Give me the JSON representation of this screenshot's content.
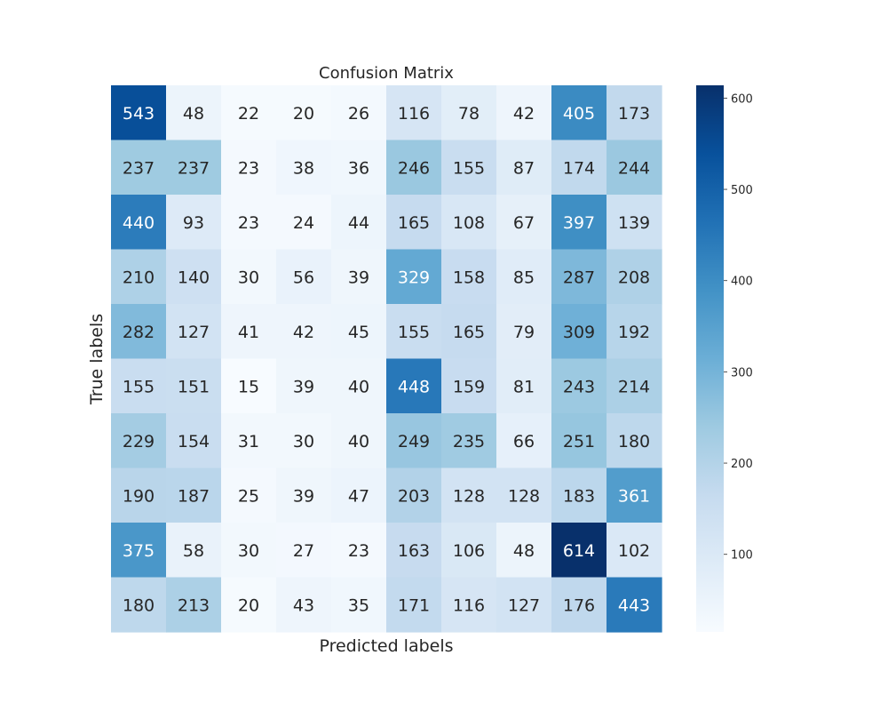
{
  "chart_data": {
    "type": "heatmap",
    "title": "Confusion Matrix",
    "xlabel": "Predicted labels",
    "ylabel": "True labels",
    "colormap": "Blues",
    "colorbar": {
      "min": 15,
      "max": 614,
      "ticks": [
        100,
        200,
        300,
        400,
        500,
        600
      ]
    },
    "show_tick_labels": false,
    "values": [
      [
        543,
        48,
        22,
        20,
        26,
        116,
        78,
        42,
        405,
        173
      ],
      [
        237,
        237,
        23,
        38,
        36,
        246,
        155,
        87,
        174,
        244
      ],
      [
        440,
        93,
        23,
        24,
        44,
        165,
        108,
        67,
        397,
        139
      ],
      [
        210,
        140,
        30,
        56,
        39,
        329,
        158,
        85,
        287,
        208
      ],
      [
        282,
        127,
        41,
        42,
        45,
        155,
        165,
        79,
        309,
        192
      ],
      [
        155,
        151,
        15,
        39,
        40,
        448,
        159,
        81,
        243,
        214
      ],
      [
        229,
        154,
        31,
        30,
        40,
        249,
        235,
        66,
        251,
        180
      ],
      [
        190,
        187,
        25,
        39,
        47,
        203,
        128,
        128,
        183,
        361
      ],
      [
        375,
        58,
        30,
        27,
        23,
        163,
        106,
        48,
        614,
        102
      ],
      [
        180,
        213,
        20,
        43,
        35,
        171,
        116,
        127,
        176,
        443
      ]
    ]
  }
}
